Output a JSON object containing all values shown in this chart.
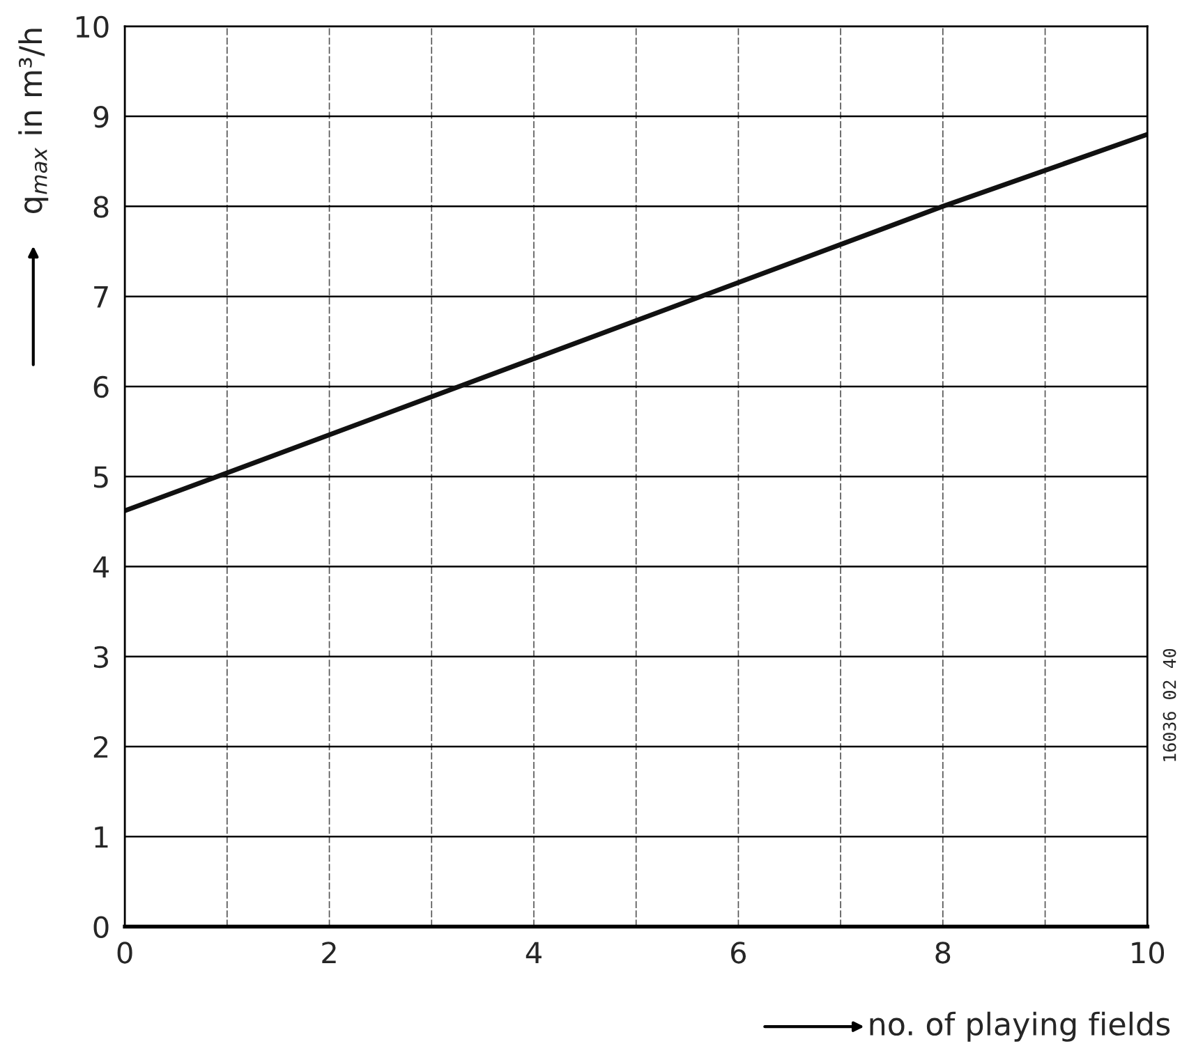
{
  "chart_data": {
    "type": "line",
    "xlabel": "no. of playing fields",
    "ylabel": "q$_{max}$ in m³/h",
    "x": [
      0,
      1,
      8,
      10
    ],
    "series": [
      {
        "color": "#111111",
        "values": [
          4.62,
          5.04,
          8.0,
          8.8
        ]
      }
    ],
    "xlim": [
      0,
      10
    ],
    "ylim": [
      0,
      10
    ],
    "xticks": [
      0,
      {
        "value": 1,
        "label": null
      },
      2,
      {
        "value": 3,
        "label": null
      },
      4,
      {
        "value": 5,
        "label": null
      },
      6,
      {
        "value": 7,
        "label": null
      },
      8,
      {
        "value": 9,
        "label": null
      },
      10
    ],
    "yticks": [
      0,
      1,
      2,
      3,
      4,
      5,
      6,
      7,
      8,
      9,
      10
    ],
    "grid": true,
    "annotations": [
      "16036 02 40"
    ]
  }
}
